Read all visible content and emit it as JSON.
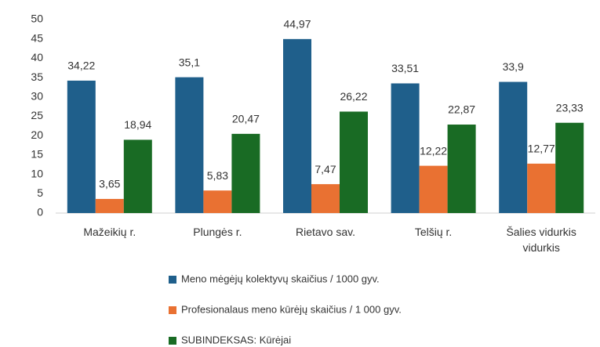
{
  "chart_data": {
    "type": "bar",
    "categories": [
      "Mažeikių r.",
      "Plungės r.",
      "Rietavo sav.",
      "Telšių r.",
      "Šalies vidurkis vidurkis"
    ],
    "series": [
      {
        "name": "Meno mėgėjų kolektyvų skaičius / 1000 gyv.",
        "color": "#1f5f8b",
        "values": [
          34.22,
          35.1,
          44.97,
          33.51,
          33.9
        ],
        "value_labels": [
          "34,22",
          "35,1",
          "44,97",
          "33,51",
          "33,9"
        ]
      },
      {
        "name": "Profesionalaus meno kūrėjų skaičius / 1 000 gyv.",
        "color": "#e97132",
        "values": [
          3.65,
          5.83,
          7.47,
          12.22,
          12.77
        ],
        "value_labels": [
          "3,65",
          "5,83",
          "7,47",
          "12,22",
          "12,77"
        ]
      },
      {
        "name": "SUBINDEKSAS: Kūrėjai",
        "color": "#196b24",
        "values": [
          18.94,
          20.47,
          26.22,
          22.87,
          23.33
        ],
        "value_labels": [
          "18,94",
          "20,47",
          "26,22",
          "22,87",
          "23,33"
        ]
      }
    ],
    "ylim": [
      0,
      50
    ],
    "yticks": [
      0,
      5,
      10,
      15,
      20,
      25,
      30,
      35,
      40,
      45,
      50
    ],
    "grid": false,
    "legend": "bottom"
  }
}
